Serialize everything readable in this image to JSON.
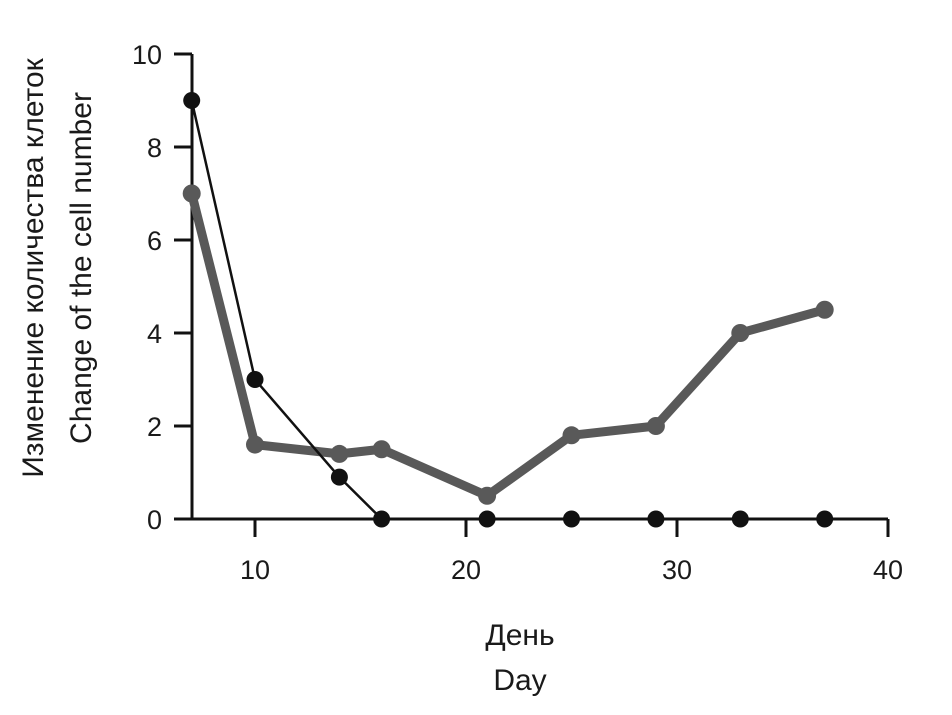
{
  "chart_data": {
    "type": "line",
    "xlabel_lines": [
      "День",
      "Day"
    ],
    "ylabel_lines": [
      "Изменение количества клеток",
      "Change of the cell number"
    ],
    "xlim": [
      7,
      40
    ],
    "ylim": [
      0,
      10
    ],
    "xticks": [
      10,
      20,
      30,
      40
    ],
    "yticks": [
      0,
      2,
      4,
      6,
      8,
      10
    ],
    "grid": false,
    "legend": "none",
    "series": [
      {
        "x": [
          7,
          10,
          14,
          16,
          21,
          25,
          29,
          33,
          37
        ],
        "y": [
          7,
          1.6,
          1.4,
          1.5,
          0.5,
          1.8,
          2,
          4,
          4.5
        ],
        "color": "#595959",
        "style": "thick"
      },
      {
        "x": [
          7,
          10,
          14,
          16,
          21,
          25,
          29,
          33,
          37
        ],
        "y": [
          9,
          3,
          0.9,
          0,
          0,
          0,
          0,
          0,
          0
        ],
        "color": "#111111",
        "style": "thin"
      }
    ]
  }
}
